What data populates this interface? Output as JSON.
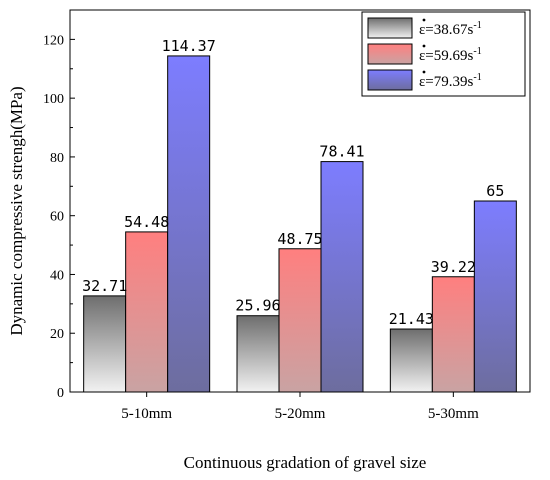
{
  "chart_data": {
    "type": "bar",
    "title": "",
    "xlabel": "Continuous gradation of gravel size",
    "ylabel": "Dynamic compressive strengh(MPa)",
    "ylim": [
      0,
      130
    ],
    "yticks": [
      0,
      20,
      40,
      60,
      80,
      100,
      120
    ],
    "categories": [
      "5-10mm",
      "5-20mm",
      "5-30mm"
    ],
    "series": [
      {
        "name": "ε=38.67s-1",
        "legend_base": "ε=38.67s",
        "legend_sup": "-1",
        "values": [
          32.71,
          25.96,
          21.43
        ],
        "labels": [
          "32.71",
          "25.96",
          "21.43"
        ],
        "color_top": "#6e6e6e",
        "color_bottom": "#f2f2f2"
      },
      {
        "name": "ε=59.69s-1",
        "legend_base": "ε=59.69s",
        "legend_sup": "-1",
        "values": [
          54.48,
          48.75,
          39.22
        ],
        "labels": [
          "54.48",
          "48.75",
          "39.22"
        ],
        "color_top": "#ff7f7f",
        "color_bottom": "#c9a3a3"
      },
      {
        "name": "ε=79.39s-1",
        "legend_base": "ε=79.39s",
        "legend_sup": "-1",
        "values": [
          114.37,
          78.41,
          65
        ],
        "labels": [
          "114.37",
          "78.41",
          "65"
        ],
        "color_top": "#7d7dff",
        "color_bottom": "#6d6d9e"
      }
    ],
    "legend_position": "top-right",
    "grid": false
  }
}
